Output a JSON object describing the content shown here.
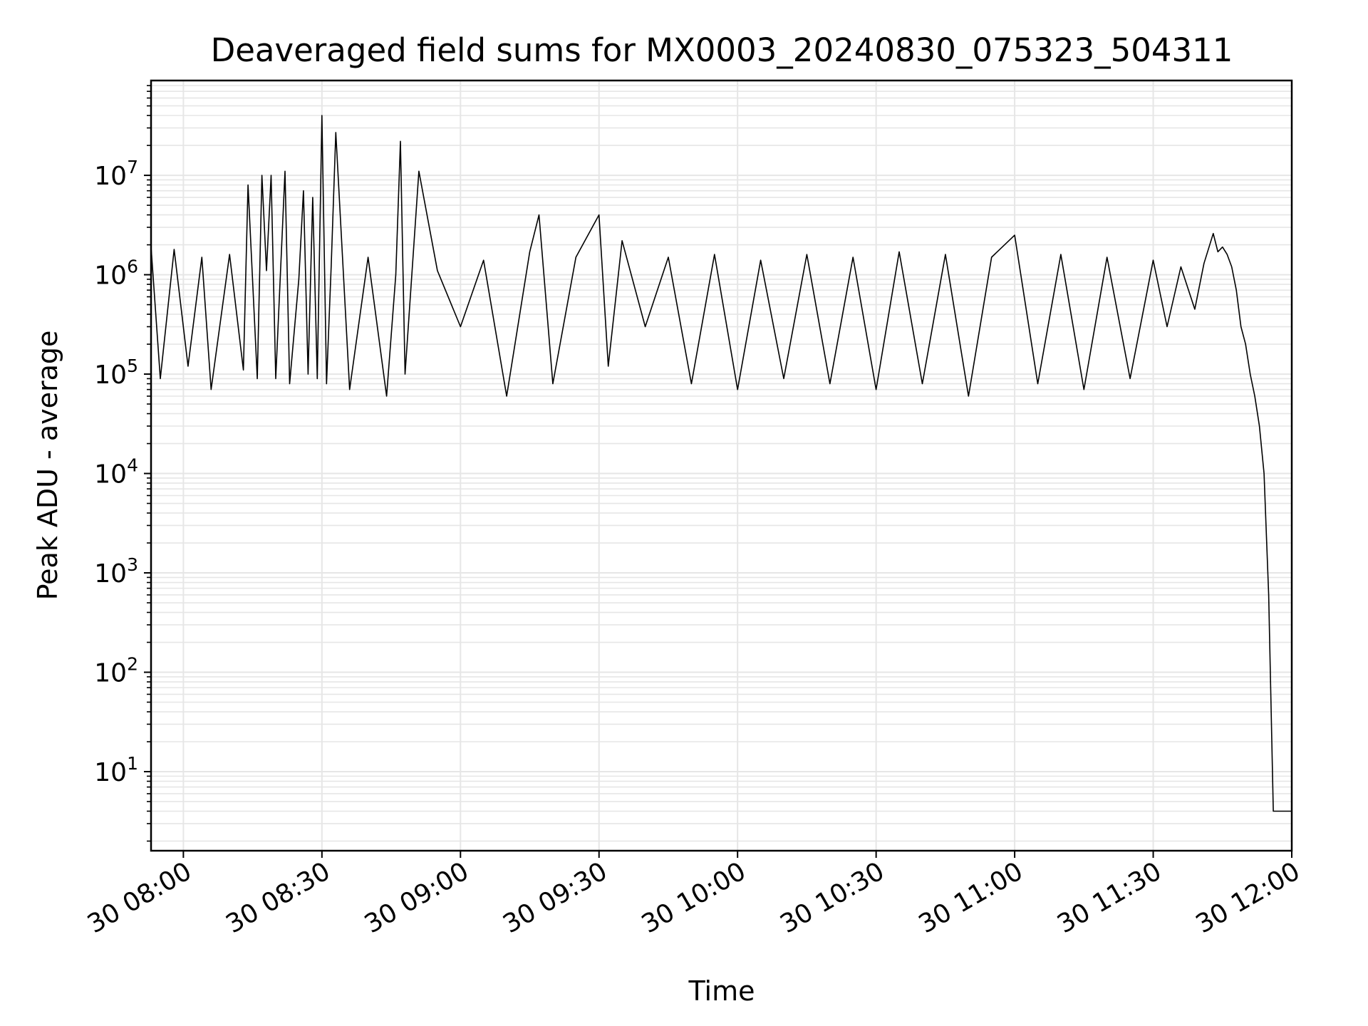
{
  "chart_data": {
    "type": "line",
    "title": "Deaveraged field sums for MX0003_20240830_075323_504311",
    "xlabel": "Time",
    "ylabel": "Peak ADU - average",
    "yscale": "log",
    "grid": true,
    "grid_minor": true,
    "line_color": "#000000",
    "grid_color": "#e6e6e6",
    "xlim": [
      "2024-08-30 07:53",
      "2024-08-30 12:00"
    ],
    "ylim": [
      1.6,
      90000000
    ],
    "x_ticks": [
      {
        "value": "2024-08-30 08:00",
        "label": "30 08:00"
      },
      {
        "value": "2024-08-30 08:30",
        "label": "30 08:30"
      },
      {
        "value": "2024-08-30 09:00",
        "label": "30 09:00"
      },
      {
        "value": "2024-08-30 09:30",
        "label": "30 09:30"
      },
      {
        "value": "2024-08-30 10:00",
        "label": "30 10:00"
      },
      {
        "value": "2024-08-30 10:30",
        "label": "30 10:30"
      },
      {
        "value": "2024-08-30 11:00",
        "label": "30 11:00"
      },
      {
        "value": "2024-08-30 11:30",
        "label": "30 11:30"
      },
      {
        "value": "2024-08-30 12:00",
        "label": "30 12:00"
      }
    ],
    "y_ticks": [
      {
        "value": 10,
        "base": "10",
        "exp": "1"
      },
      {
        "value": 100,
        "base": "10",
        "exp": "2"
      },
      {
        "value": 1000,
        "base": "10",
        "exp": "3"
      },
      {
        "value": 10000,
        "base": "10",
        "exp": "4"
      },
      {
        "value": 100000,
        "base": "10",
        "exp": "5"
      },
      {
        "value": 1000000,
        "base": "10",
        "exp": "6"
      },
      {
        "value": 10000000,
        "base": "10",
        "exp": "7"
      }
    ],
    "series": [
      {
        "x": [
          "2024-08-30 07:53",
          "2024-08-30 07:55",
          "2024-08-30 07:58",
          "2024-08-30 08:01",
          "2024-08-30 08:04",
          "2024-08-30 08:06",
          "2024-08-30 08:10",
          "2024-08-30 08:13",
          "2024-08-30 08:14",
          "2024-08-30 08:16",
          "2024-08-30 08:17",
          "2024-08-30 08:18",
          "2024-08-30 08:19",
          "2024-08-30 08:20",
          "2024-08-30 08:22",
          "2024-08-30 08:23",
          "2024-08-30 08:25",
          "2024-08-30 08:26",
          "2024-08-30 08:27",
          "2024-08-30 08:28",
          "2024-08-30 08:29",
          "2024-08-30 08:30",
          "2024-08-30 08:31",
          "2024-08-30 08:32",
          "2024-08-30 08:33",
          "2024-08-30 08:36",
          "2024-08-30 08:40",
          "2024-08-30 08:44",
          "2024-08-30 08:46",
          "2024-08-30 08:47",
          "2024-08-30 08:48",
          "2024-08-30 08:51",
          "2024-08-30 08:55",
          "2024-08-30 09:00",
          "2024-08-30 09:05",
          "2024-08-30 09:10",
          "2024-08-30 09:15",
          "2024-08-30 09:17",
          "2024-08-30 09:20",
          "2024-08-30 09:25",
          "2024-08-30 09:30",
          "2024-08-30 09:32",
          "2024-08-30 09:35",
          "2024-08-30 09:40",
          "2024-08-30 09:45",
          "2024-08-30 09:50",
          "2024-08-30 09:55",
          "2024-08-30 10:00",
          "2024-08-30 10:05",
          "2024-08-30 10:10",
          "2024-08-30 10:15",
          "2024-08-30 10:20",
          "2024-08-30 10:25",
          "2024-08-30 10:30",
          "2024-08-30 10:35",
          "2024-08-30 10:40",
          "2024-08-30 10:45",
          "2024-08-30 10:50",
          "2024-08-30 10:55",
          "2024-08-30 11:00",
          "2024-08-30 11:05",
          "2024-08-30 11:10",
          "2024-08-30 11:15",
          "2024-08-30 11:20",
          "2024-08-30 11:25",
          "2024-08-30 11:30",
          "2024-08-30 11:33",
          "2024-08-30 11:36",
          "2024-08-30 11:39",
          "2024-08-30 11:41",
          "2024-08-30 11:43",
          "2024-08-30 11:44",
          "2024-08-30 11:45",
          "2024-08-30 11:46",
          "2024-08-30 11:47",
          "2024-08-30 11:48",
          "2024-08-30 11:49",
          "2024-08-30 11:50",
          "2024-08-30 11:51",
          "2024-08-30 11:52",
          "2024-08-30 11:53",
          "2024-08-30 11:54",
          "2024-08-30 11:55",
          "2024-08-30 11:56",
          "2024-08-30 11:57",
          "2024-08-30 11:58",
          "2024-08-30 12:00"
        ],
        "values": [
          1900000,
          90000,
          1800000,
          120000,
          1500000,
          70000,
          1600000,
          110000,
          8000000,
          90000,
          10000000,
          1100000,
          10000000,
          90000,
          11000000,
          80000,
          900000,
          7000000,
          100000,
          6000000,
          90000,
          40000000,
          80000,
          1200000,
          27000000,
          70000,
          1500000,
          60000,
          1000000,
          22000000,
          100000,
          11000000,
          1100000,
          300000,
          1400000,
          60000,
          1700000,
          4000000,
          80000,
          1500000,
          4000000,
          120000,
          2200000,
          300000,
          1500000,
          80000,
          1600000,
          70000,
          1400000,
          90000,
          1600000,
          80000,
          1500000,
          70000,
          1700000,
          80000,
          1600000,
          60000,
          1500000,
          2500000,
          80000,
          1600000,
          70000,
          1500000,
          90000,
          1400000,
          300000,
          1200000,
          450000,
          1300000,
          2600000,
          1700000,
          1900000,
          1600000,
          1200000,
          700000,
          300000,
          200000,
          100000,
          60000,
          30000,
          10000,
          600,
          4,
          4,
          4,
          4
        ]
      }
    ]
  }
}
